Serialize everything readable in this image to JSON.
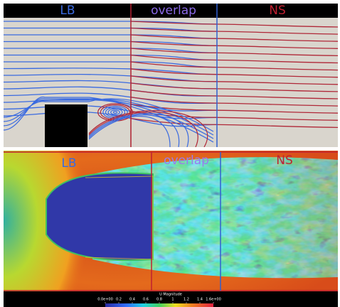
{
  "top_panel": {
    "labels": [
      "LB",
      "overlap",
      "NS"
    ]
  },
  "bottom_panel": {
    "labels": [
      "LB",
      "overlap",
      "NS"
    ]
  },
  "colorbar": {
    "title": "U Magnitude",
    "ticks": [
      "0.0e+00",
      "0.2",
      "0.4",
      "0.6",
      "0.8",
      "1",
      "1.2",
      "1.4",
      "1.6e+00"
    ]
  }
}
